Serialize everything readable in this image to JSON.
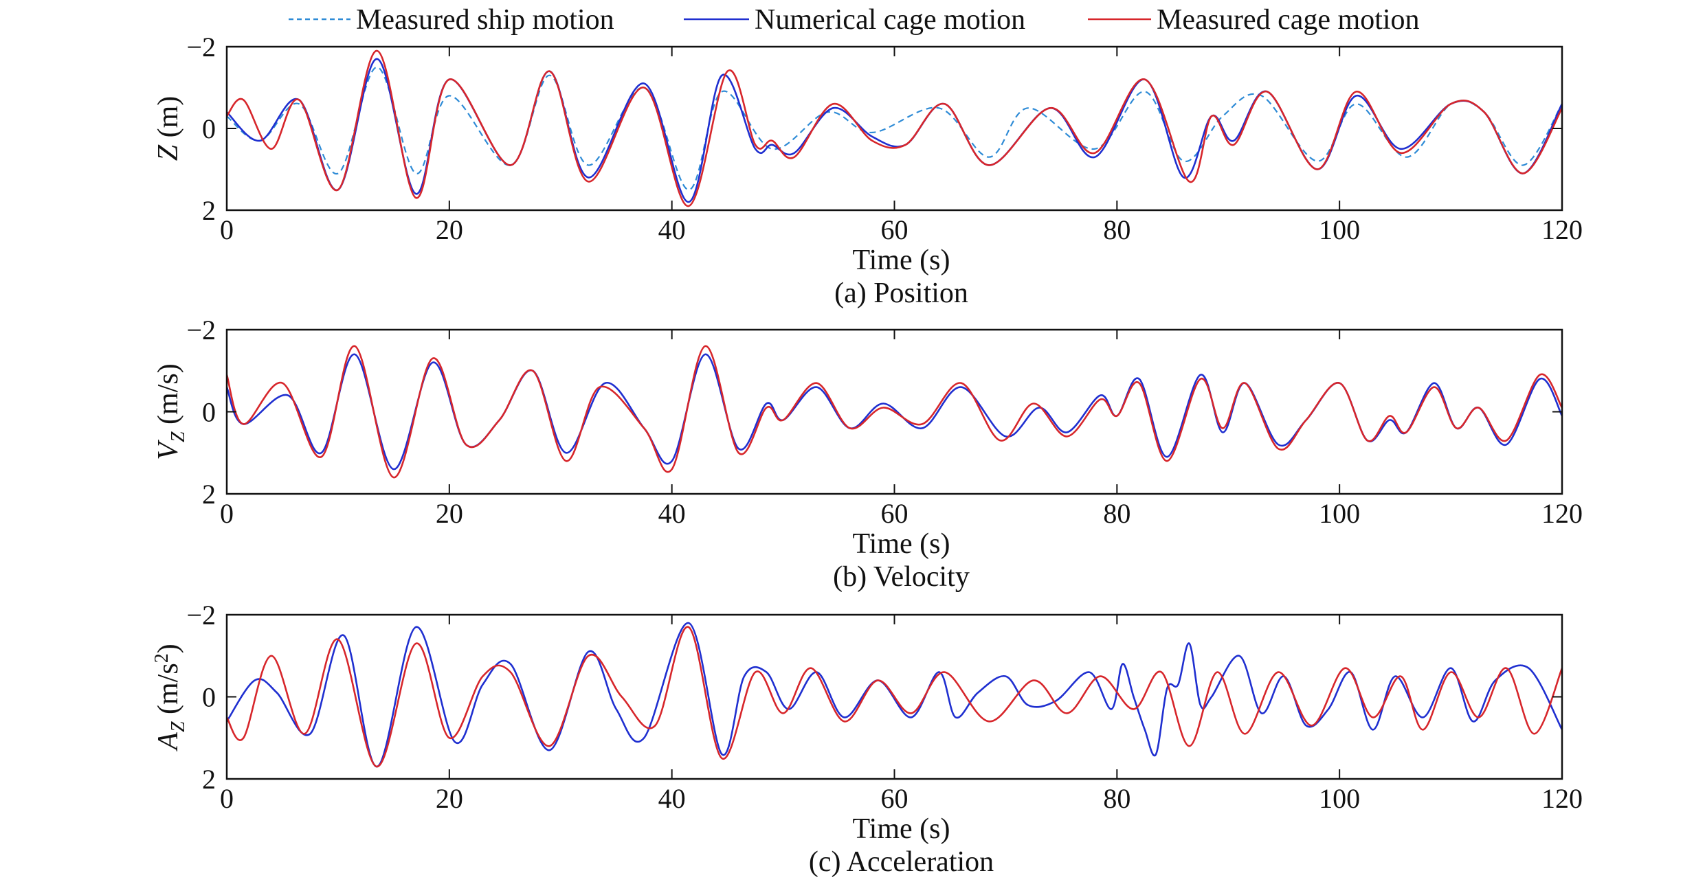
{
  "legend": {
    "placement": "top",
    "entries": [
      {
        "label": "Measured ship motion",
        "style": "dashed",
        "color": "#2e8bd6"
      },
      {
        "label": "Numerical cage motion",
        "style": "solid",
        "color": "#1f2fd0"
      },
      {
        "label": "Measured cage motion",
        "style": "solid",
        "color": "#d7262b"
      }
    ]
  },
  "colors": {
    "ship": "#2e8bd6",
    "numerical": "#1f2fd0",
    "measured": "#d7262b",
    "axis": "#111111"
  },
  "chart_data": [
    {
      "type": "line",
      "caption": "(a) Position",
      "xlabel": "Time (s)",
      "ylabel": {
        "main": "Z",
        "sub": "",
        "unit": " (m)",
        "sup": ""
      },
      "xlim": [
        0,
        120
      ],
      "ylim": [
        -2,
        2
      ],
      "y_inverted": true,
      "grid": false,
      "xticks": [
        0,
        20,
        40,
        60,
        80,
        100,
        120
      ],
      "yticks": [
        -2,
        0,
        2
      ],
      "ytick_labels": [
        "−2",
        "0",
        "2"
      ],
      "series": [
        {
          "name": "Measured ship motion",
          "key": "ship",
          "style": "dashed",
          "x": [
            0,
            3,
            6.5,
            10,
            13.5,
            17,
            20,
            25.5,
            29,
            32.5,
            37.5,
            41.5,
            44.5,
            49,
            54,
            58,
            64,
            68.5,
            72,
            78,
            82.5,
            86,
            89.5,
            93,
            98,
            101.5,
            106,
            110,
            113,
            116.5,
            120
          ],
          "y": [
            -0.3,
            0.3,
            -0.6,
            1.1,
            -1.5,
            1.1,
            -0.8,
            0.9,
            -1.3,
            0.9,
            -1.0,
            1.5,
            -0.9,
            0.5,
            -0.4,
            0.1,
            -0.5,
            0.7,
            -0.5,
            0.5,
            -0.9,
            0.8,
            -0.3,
            -0.8,
            0.8,
            -0.6,
            0.7,
            -0.6,
            -0.4,
            0.9,
            -0.6
          ]
        },
        {
          "name": "Numerical cage motion",
          "key": "numerical",
          "style": "solid",
          "x": [
            0,
            3,
            6.5,
            10,
            13.5,
            17,
            20,
            25.5,
            29,
            32.5,
            37.5,
            41.5,
            44.5,
            47.5,
            49,
            51,
            54.5,
            58,
            61,
            64.5,
            68.5,
            74,
            78,
            82.5,
            86,
            88.5,
            90.5,
            93.5,
            98,
            101.5,
            105.5,
            110,
            113,
            116.5,
            120
          ],
          "y": [
            -0.4,
            0.3,
            -0.7,
            1.5,
            -1.7,
            1.6,
            -1.2,
            0.9,
            -1.4,
            1.2,
            -1.1,
            1.8,
            -1.3,
            0.5,
            0.4,
            0.6,
            -0.5,
            0.2,
            0.4,
            -0.6,
            0.9,
            -0.5,
            0.7,
            -1.2,
            1.2,
            -0.3,
            0.3,
            -0.9,
            1.0,
            -0.8,
            0.5,
            -0.6,
            -0.4,
            1.1,
            -0.6
          ]
        },
        {
          "name": "Measured cage motion",
          "key": "measured",
          "style": "solid",
          "x": [
            0,
            1.5,
            4,
            6.5,
            10,
            13.5,
            17,
            20,
            25.5,
            29,
            32.5,
            37.5,
            41.5,
            45,
            47.5,
            49,
            51,
            54.5,
            58,
            61,
            64.5,
            68.5,
            74,
            78,
            82.5,
            86.5,
            88.5,
            90.5,
            93.5,
            98,
            101.5,
            105.5,
            110,
            113,
            116.5,
            120
          ],
          "y": [
            -0.3,
            -0.7,
            0.5,
            -0.7,
            1.5,
            -1.9,
            1.7,
            -1.2,
            0.9,
            -1.4,
            1.3,
            -1.0,
            1.9,
            -1.4,
            0.4,
            0.3,
            0.7,
            -0.6,
            0.3,
            0.4,
            -0.6,
            0.9,
            -0.5,
            0.6,
            -1.2,
            1.3,
            -0.3,
            0.4,
            -0.9,
            1.0,
            -0.9,
            0.6,
            -0.6,
            -0.4,
            1.1,
            -0.5
          ]
        }
      ]
    },
    {
      "type": "line",
      "caption": "(b) Velocity",
      "xlabel": "Time (s)",
      "ylabel": {
        "main": "V",
        "sub": "Z",
        "unit": " (m/s)",
        "sup": ""
      },
      "xlim": [
        0,
        120
      ],
      "ylim": [
        -2,
        2
      ],
      "y_inverted": true,
      "grid": false,
      "xticks": [
        0,
        20,
        40,
        60,
        80,
        100,
        120
      ],
      "yticks": [
        -2,
        0,
        2
      ],
      "ytick_labels": [
        "−2",
        "0",
        "2"
      ],
      "series": [
        {
          "name": "Numerical cage motion",
          "key": "numerical",
          "style": "solid",
          "x": [
            0,
            1.5,
            5.5,
            8.5,
            11.5,
            15,
            18.5,
            21.5,
            24.5,
            27.5,
            30.5,
            34,
            37.5,
            40,
            43,
            46,
            48.5,
            50,
            53,
            56,
            59,
            62.5,
            66,
            70,
            73,
            75.5,
            78.5,
            80,
            82,
            84.5,
            87.5,
            89.5,
            91.5,
            94.5,
            97,
            100,
            102.5,
            104.5,
            106,
            108.5,
            110.5,
            112.5,
            115,
            118,
            120
          ],
          "y": [
            -0.6,
            0.3,
            -0.4,
            1.0,
            -1.4,
            1.4,
            -1.2,
            0.8,
            0.2,
            -1.0,
            1.0,
            -0.7,
            0.4,
            1.2,
            -1.4,
            0.9,
            -0.2,
            0.2,
            -0.6,
            0.4,
            -0.2,
            0.4,
            -0.6,
            0.6,
            -0.1,
            0.5,
            -0.4,
            0.1,
            -0.8,
            1.1,
            -0.9,
            0.5,
            -0.7,
            0.8,
            0.2,
            -0.7,
            0.7,
            0.2,
            0.5,
            -0.7,
            0.4,
            -0.1,
            0.8,
            -0.8,
            0.1
          ]
        },
        {
          "name": "Measured cage motion",
          "key": "measured",
          "style": "solid",
          "x": [
            0,
            1.5,
            5,
            8.5,
            11.5,
            15,
            18.5,
            21.5,
            24.5,
            27.5,
            30.5,
            33.5,
            37.5,
            40,
            43,
            46,
            48.5,
            50,
            53,
            56,
            59,
            62.5,
            66,
            69.5,
            72.5,
            75.5,
            78.5,
            80,
            82,
            84.5,
            87.5,
            89.5,
            91.5,
            94.5,
            97,
            100,
            102.5,
            104.5,
            106,
            108.5,
            110.5,
            112.5,
            115,
            118,
            120
          ],
          "y": [
            -0.9,
            0.3,
            -0.7,
            1.1,
            -1.6,
            1.6,
            -1.3,
            0.8,
            0.2,
            -1.0,
            1.2,
            -0.6,
            0.4,
            1.4,
            -1.6,
            1.0,
            -0.1,
            0.2,
            -0.7,
            0.4,
            -0.1,
            0.3,
            -0.7,
            0.7,
            -0.2,
            0.6,
            -0.3,
            0.1,
            -0.7,
            1.2,
            -0.8,
            0.4,
            -0.7,
            0.9,
            0.2,
            -0.7,
            0.7,
            0.1,
            0.5,
            -0.6,
            0.4,
            -0.1,
            0.7,
            -0.9,
            -0.1
          ]
        }
      ]
    },
    {
      "type": "line",
      "caption": "(c) Acceleration",
      "xlabel": "Time (s)",
      "ylabel": {
        "main": "A",
        "sub": "Z",
        "unit": " (m/s",
        "sup": "2",
        "close": ")"
      },
      "xlim": [
        0,
        120
      ],
      "ylim": [
        -2,
        2
      ],
      "y_inverted": true,
      "grid": false,
      "xticks": [
        0,
        20,
        40,
        60,
        80,
        100,
        120
      ],
      "yticks": [
        -2,
        0,
        2
      ],
      "ytick_labels": [
        "−2",
        "0",
        "2"
      ],
      "series": [
        {
          "name": "Numerical cage motion",
          "key": "numerical",
          "style": "solid",
          "x": [
            0,
            2.5,
            4.5,
            7.5,
            10.5,
            13.5,
            17,
            20.5,
            23,
            25.5,
            29,
            32.5,
            35,
            37.5,
            41.5,
            44.5,
            46.5,
            48.5,
            50.5,
            53,
            55.5,
            58.5,
            61.5,
            64,
            65.5,
            67.5,
            70,
            72,
            74.5,
            77.5,
            79.5,
            80.5,
            81.5,
            82.5,
            83.5,
            84.5,
            85.5,
            86.5,
            87.5,
            88.5,
            91,
            93,
            95,
            97,
            99,
            101,
            103,
            105,
            107.5,
            110,
            112,
            114,
            117,
            120
          ],
          "y": [
            0.6,
            -0.4,
            -0.1,
            0.9,
            -1.5,
            1.7,
            -1.7,
            1.1,
            -0.3,
            -0.8,
            1.3,
            -1.1,
            0.3,
            1.0,
            -1.8,
            1.4,
            -0.5,
            -0.6,
            0.3,
            -0.6,
            0.5,
            -0.4,
            0.5,
            -0.6,
            0.5,
            -0.1,
            -0.5,
            0.2,
            0.1,
            -0.6,
            0.3,
            -0.8,
            0.0,
            0.8,
            1.4,
            -0.2,
            -0.3,
            -1.3,
            0.2,
            0.0,
            -1.0,
            0.4,
            -0.5,
            0.7,
            0.3,
            -0.6,
            0.8,
            -0.5,
            0.5,
            -0.7,
            0.6,
            -0.4,
            -0.7,
            0.8
          ]
        },
        {
          "name": "Measured cage motion",
          "key": "measured",
          "style": "solid",
          "x": [
            0,
            1.5,
            4,
            7,
            10,
            13.5,
            17,
            20,
            23,
            25.5,
            29,
            32.5,
            35.5,
            38.5,
            41.5,
            44.5,
            47.5,
            50,
            52.5,
            55.5,
            58.5,
            61.5,
            64.5,
            68.5,
            72.5,
            75.5,
            78.5,
            81.5,
            84,
            86.5,
            89,
            91.5,
            94.5,
            97.5,
            100.5,
            103,
            105.5,
            107.5,
            110,
            112.5,
            115,
            117.5,
            120
          ],
          "y": [
            0.5,
            1.0,
            -1.0,
            0.9,
            -1.4,
            1.7,
            -1.3,
            1.0,
            -0.5,
            -0.6,
            1.2,
            -1.0,
            0.0,
            0.7,
            -1.7,
            1.5,
            -0.6,
            0.4,
            -0.7,
            0.6,
            -0.4,
            0.4,
            -0.6,
            0.6,
            -0.4,
            0.4,
            -0.5,
            0.3,
            -0.6,
            1.2,
            -0.6,
            0.9,
            -0.6,
            0.7,
            -0.7,
            0.5,
            -0.5,
            0.8,
            -0.6,
            0.5,
            -0.7,
            0.9,
            -0.7
          ]
        }
      ]
    }
  ]
}
